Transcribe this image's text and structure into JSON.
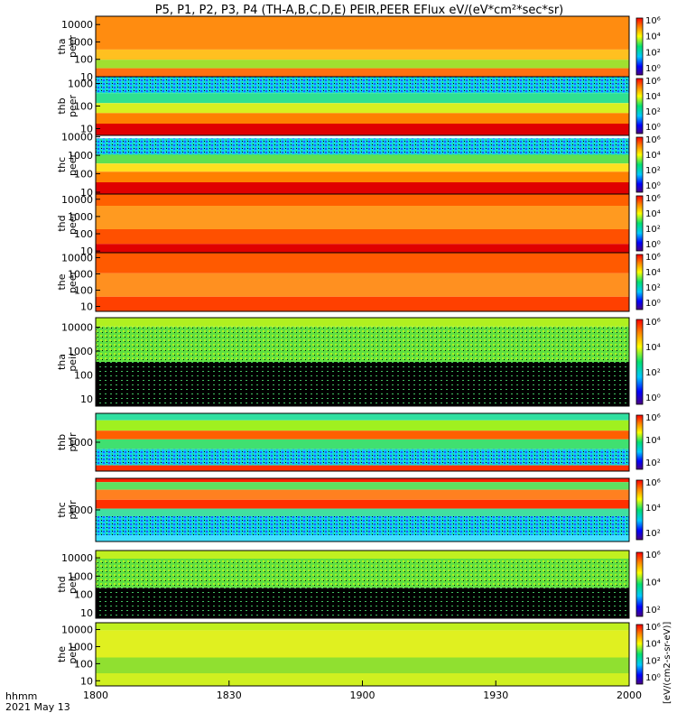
{
  "title": "P5, P1, P2, P3, P4 (TH-A,B,C,D,E) PEIR,PEER EFlux eV/(eV*cm²*sec*sr)",
  "time_label": "hhmm",
  "date_label": "2021 May 13",
  "x_ticks": [
    "1800",
    "1830",
    "1900",
    "1930",
    "2000"
  ],
  "colorbar_label": "[eV/(cm2-s-sr-eV)]",
  "chart_data": {
    "type": "heatmap",
    "xlabel": "hhmm",
    "x_range": [
      "1800",
      "2000"
    ],
    "x_ticks": [
      "1800",
      "1830",
      "1900",
      "1930",
      "2000"
    ],
    "colormap": "rainbow (purple-blue-cyan-green-yellow-red)",
    "panels": [
      {
        "id": "tha-peer",
        "probe": "tha",
        "species": "peer",
        "yticks": [
          "10",
          "100",
          "1000",
          "10000"
        ],
        "cbticks": [
          "10⁶",
          "10⁴",
          "10²",
          "10⁰"
        ],
        "ylog_range": [
          10,
          30000
        ]
      },
      {
        "id": "thb-peer",
        "probe": "thb",
        "species": "peer",
        "yticks": [
          "10",
          "100",
          "1000"
        ],
        "cbticks": [
          "10⁶",
          "10⁴",
          "10²",
          "10⁰"
        ],
        "ylog_range": [
          5,
          2000
        ]
      },
      {
        "id": "thc-peer",
        "probe": "thc",
        "species": "peer",
        "yticks": [
          "10",
          "100",
          "1000",
          "10000"
        ],
        "cbticks": [
          "10⁶",
          "10⁴",
          "10²",
          "10⁰"
        ],
        "ylog_range": [
          8,
          12000
        ]
      },
      {
        "id": "thd-peer",
        "probe": "thd",
        "species": "peer",
        "yticks": [
          "10",
          "100",
          "1000",
          "10000"
        ],
        "cbticks": [
          "10⁶",
          "10⁴",
          "10²",
          "10⁰"
        ],
        "ylog_range": [
          8,
          20000
        ]
      },
      {
        "id": "the-peer",
        "probe": "the",
        "species": "peer",
        "yticks": [
          "10",
          "100",
          "1000",
          "10000"
        ],
        "cbticks": [
          "10⁶",
          "10⁴",
          "10²",
          "10⁰"
        ],
        "ylog_range": [
          5,
          20000
        ]
      },
      {
        "id": "tha-peir",
        "probe": "tha",
        "species": "peir",
        "yticks": [
          "10",
          "100",
          "1000",
          "10000"
        ],
        "cbticks": [
          "10⁶",
          "10⁴",
          "10²",
          "10⁰"
        ],
        "ylog_range": [
          5,
          25000
        ]
      },
      {
        "id": "thb-peir",
        "probe": "thb",
        "species": "peir",
        "yticks": [
          "1000"
        ],
        "cbticks": [
          "10⁶",
          "10⁴",
          "10²"
        ],
        "ylog_range": [
          200,
          5000
        ]
      },
      {
        "id": "thc-peir",
        "probe": "thc",
        "species": "peir",
        "yticks": [
          "1000"
        ],
        "cbticks": [
          "10⁶",
          "10⁴",
          "10²"
        ],
        "ylog_range": [
          200,
          5000
        ]
      },
      {
        "id": "thd-peir",
        "probe": "thd",
        "species": "peir",
        "yticks": [
          "10",
          "100",
          "1000",
          "10000"
        ],
        "cbticks": [
          "10⁶",
          "10⁴",
          "10²"
        ],
        "ylog_range": [
          5,
          25000
        ]
      },
      {
        "id": "the-peir",
        "probe": "the",
        "species": "peir",
        "yticks": [
          "10",
          "100",
          "1000",
          "10000"
        ],
        "cbticks": [
          "10⁶",
          "10⁴",
          "10²",
          "10⁰"
        ],
        "ylog_range": [
          5,
          25000
        ]
      }
    ]
  }
}
